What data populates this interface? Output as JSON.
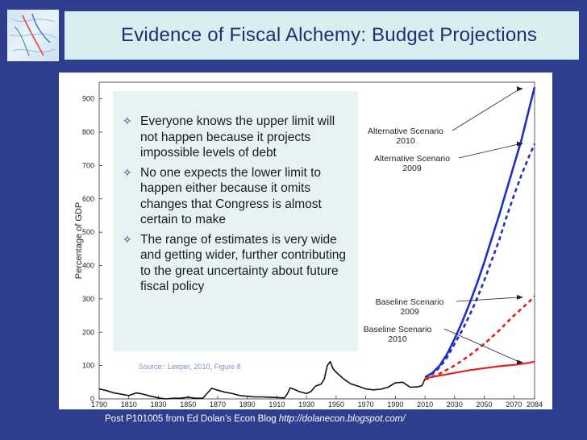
{
  "title": "Evidence of Fiscal Alchemy: Budget Projections",
  "bullets": [
    "Everyone knows the upper limit will not happen because it projects impossible levels of debt",
    "No one expects the lower limit to happen either because it omits changes that Congress is almost certain to make",
    "The range of estimates is very wide and getting wider, further contributing to the great uncertainty about future fiscal policy"
  ],
  "source": "Source:: Leeper, 2010, Figure 8",
  "footer": {
    "text": "Post P101005 from Ed Dolan’s Econ Blog ",
    "url": "http://dolanecon.blogspot.com/"
  },
  "colors": {
    "background": "#2f3d8f",
    "title_bar": "#d9eef0",
    "alt_series": "#1f2fc4",
    "base_series": "#e02222"
  },
  "chart_data": {
    "type": "line",
    "ylabel": "Percentage of GDP",
    "xlim": [
      1790,
      2084
    ],
    "ylim": [
      0,
      950
    ],
    "xticks": [
      "1790",
      "1810",
      "1830",
      "1850",
      "1870",
      "1890",
      "1910",
      "1930",
      "1950",
      "1970",
      "1990",
      "2010",
      "2030",
      "2050",
      "2070",
      "2084"
    ],
    "yticks": [
      "0",
      "100",
      "200",
      "300",
      "400",
      "500",
      "600",
      "700",
      "800",
      "900"
    ],
    "annotations": [
      {
        "text": "Alternative Scenario",
        "text2": "2010",
        "target": [
          2084,
          930
        ]
      },
      {
        "text": "Alternative Scenario",
        "text2": "2009",
        "target": [
          2084,
          765
        ]
      },
      {
        "text": "Baseline Scenario",
        "text2": "2009",
        "target": [
          2084,
          305
        ]
      },
      {
        "text": "Baseline Scenario",
        "text2": "2010",
        "target": [
          2084,
          110
        ]
      }
    ],
    "series": [
      {
        "style": "historical",
        "x": [
          1790,
          1795,
          1800,
          1805,
          1810,
          1815,
          1818,
          1825,
          1830,
          1835,
          1840,
          1845,
          1850,
          1855,
          1860,
          1862,
          1864,
          1866,
          1870,
          1875,
          1880,
          1885,
          1890,
          1895,
          1900,
          1905,
          1910,
          1915,
          1917,
          1919,
          1922,
          1925,
          1930,
          1933,
          1936,
          1940,
          1942,
          1944,
          1946,
          1948,
          1950,
          1955,
          1960,
          1965,
          1970,
          1975,
          1980,
          1985,
          1990,
          1995,
          2000,
          2005,
          2008,
          2010
        ],
        "values": [
          30,
          25,
          18,
          14,
          10,
          18,
          16,
          8,
          3,
          0,
          2,
          2,
          5,
          2,
          2,
          12,
          22,
          32,
          26,
          20,
          16,
          10,
          8,
          6,
          6,
          5,
          4,
          3,
          15,
          33,
          28,
          22,
          16,
          22,
          38,
          45,
          60,
          100,
          112,
          90,
          80,
          60,
          45,
          38,
          30,
          27,
          29,
          35,
          48,
          50,
          35,
          36,
          40,
          60
        ]
      },
      {
        "style": "alt-2010",
        "x": [
          2010,
          2015,
          2020,
          2025,
          2030,
          2035,
          2040,
          2045,
          2050,
          2055,
          2060,
          2065,
          2070,
          2075,
          2080,
          2084
        ],
        "values": [
          65,
          78,
          100,
          135,
          180,
          230,
          285,
          345,
          410,
          480,
          550,
          625,
          700,
          775,
          865,
          935
        ]
      },
      {
        "style": "alt-2009",
        "x": [
          2010,
          2015,
          2020,
          2025,
          2030,
          2035,
          2040,
          2045,
          2050,
          2055,
          2060,
          2065,
          2070,
          2075,
          2080,
          2084
        ],
        "values": [
          60,
          75,
          95,
          125,
          165,
          205,
          250,
          300,
          355,
          415,
          475,
          545,
          610,
          670,
          725,
          765
        ]
      },
      {
        "style": "base-2009",
        "x": [
          2010,
          2015,
          2020,
          2025,
          2030,
          2035,
          2040,
          2045,
          2050,
          2055,
          2060,
          2065,
          2070,
          2075,
          2080,
          2084
        ],
        "values": [
          58,
          66,
          76,
          88,
          100,
          115,
          130,
          148,
          165,
          185,
          205,
          228,
          250,
          270,
          290,
          308
        ]
      },
      {
        "style": "base-2010",
        "x": [
          2010,
          2015,
          2020,
          2025,
          2030,
          2035,
          2040,
          2045,
          2050,
          2055,
          2060,
          2065,
          2070,
          2075,
          2080,
          2084
        ],
        "values": [
          62,
          66,
          70,
          74,
          78,
          82,
          86,
          89,
          92,
          95,
          98,
          100,
          102,
          105,
          108,
          112
        ]
      }
    ]
  }
}
